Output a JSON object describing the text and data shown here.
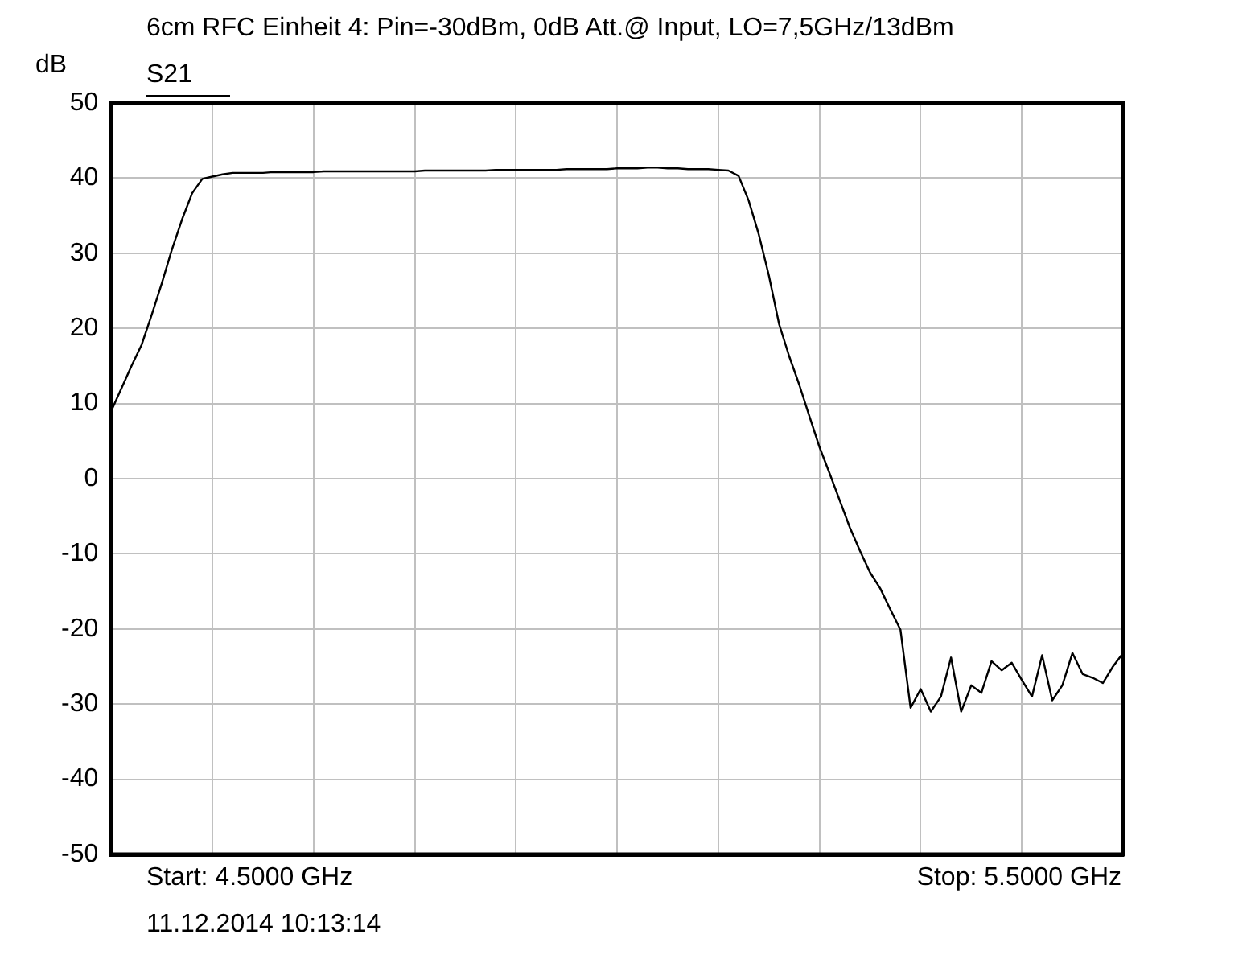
{
  "chart_data": {
    "type": "line",
    "title": "6cm RFC Einheit 4: Pin=-30dBm, 0dB Att.@ Input, LO=7,5GHz/13dBm",
    "ylabel": "dB",
    "annotations": [
      "Start: 4.5000 GHz",
      "Stop: 5.5000 GHz",
      "11.12.2014 10:13:14"
    ],
    "categories": [
      null,
      null,
      null,
      null,
      null,
      null,
      null,
      null,
      null,
      null,
      null,
      null,
      null,
      null,
      null,
      null,
      null,
      null,
      null,
      null,
      null,
      null,
      null,
      null,
      null,
      null,
      null,
      null,
      null,
      null,
      null,
      null,
      null,
      null,
      null,
      null,
      null,
      null,
      null,
      null,
      null,
      null,
      null,
      null,
      null,
      null,
      null,
      null,
      null,
      null,
      null,
      null,
      null,
      null,
      null,
      null,
      null,
      null,
      null,
      null,
      null,
      null,
      null,
      null,
      null,
      null,
      null,
      null,
      null,
      null,
      null,
      null,
      null,
      null,
      null,
      null,
      null,
      null,
      null,
      null,
      null,
      null,
      null,
      null,
      null,
      null,
      null,
      null,
      null,
      null,
      null,
      null,
      null,
      null,
      null,
      null,
      null,
      null,
      null,
      null,
      null
    ],
    "ylim": [
      -50,
      50
    ],
    "yticks": [
      -50,
      -40,
      -30,
      -20,
      -10,
      0,
      10,
      20,
      30,
      40,
      50
    ],
    "tick_labels": "y",
    "grid": true,
    "marker": "none",
    "line_style": "solid",
    "series": [
      {
        "name": "S21",
        "color": "#000000",
        "values": [
          9.0,
          12.0,
          15.0,
          17.8,
          21.8,
          26.0,
          30.5,
          34.5,
          38.0,
          39.9,
          40.2,
          40.5,
          40.7,
          40.7,
          40.7,
          40.7,
          40.8,
          40.8,
          40.8,
          40.8,
          40.8,
          40.9,
          40.9,
          40.9,
          40.9,
          40.9,
          40.9,
          40.9,
          40.9,
          40.9,
          40.9,
          41.0,
          41.0,
          41.0,
          41.0,
          41.0,
          41.0,
          41.0,
          41.1,
          41.1,
          41.1,
          41.1,
          41.1,
          41.1,
          41.1,
          41.2,
          41.2,
          41.2,
          41.2,
          41.2,
          41.3,
          41.3,
          41.3,
          41.4,
          41.4,
          41.3,
          41.3,
          41.2,
          41.2,
          41.2,
          41.1,
          41.0,
          40.3,
          37.0,
          32.5,
          27.0,
          20.6,
          16.3,
          12.5,
          8.3,
          4.2,
          0.7,
          -2.9,
          -6.5,
          -9.6,
          -12.5,
          -14.6,
          -17.4,
          -20.1,
          -30.5,
          -28.0,
          -31.0,
          -29.0,
          -23.8,
          -31.0,
          -27.5,
          -28.5,
          -24.3,
          -25.5,
          -24.5,
          -26.8,
          -29.0,
          -23.5,
          -29.5,
          -27.5,
          -23.2,
          -26.0,
          -26.5,
          -27.2,
          -25.0,
          -23.2
        ]
      }
    ]
  }
}
